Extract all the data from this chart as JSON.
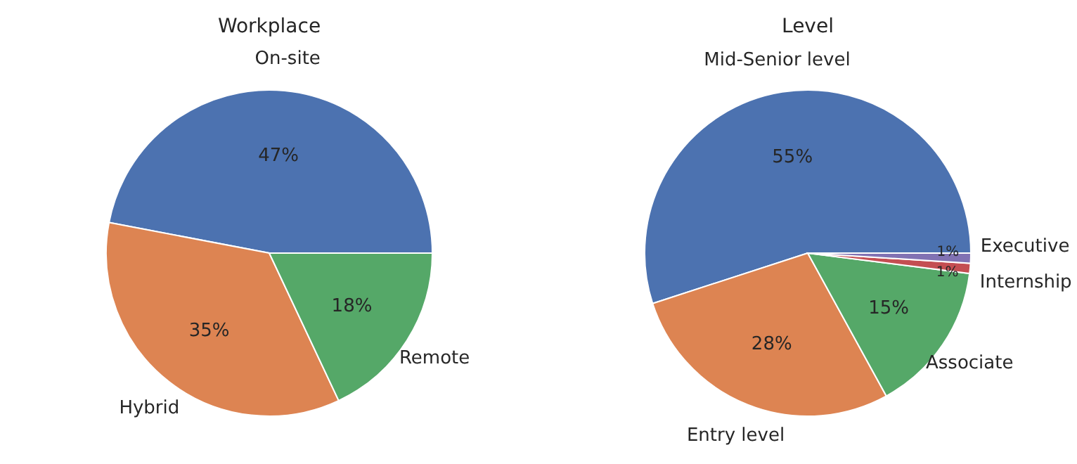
{
  "chart_data": [
    {
      "type": "pie",
      "title": "Workplace",
      "categories": [
        "On-site",
        "Hybrid",
        "Remote"
      ],
      "values": [
        47,
        35,
        18
      ],
      "colors": [
        "#4c72b0",
        "#dd8452",
        "#55a868"
      ],
      "value_labels": [
        "47%",
        "35%",
        "18%"
      ]
    },
    {
      "type": "pie",
      "title": "Level",
      "categories": [
        "Mid-Senior level",
        "Entry level",
        "Associate",
        "Internship",
        "Executive"
      ],
      "values": [
        55,
        28,
        15,
        1,
        1
      ],
      "colors": [
        "#4c72b0",
        "#dd8452",
        "#55a868",
        "#c44e52",
        "#8172b3"
      ],
      "value_labels": [
        "55%",
        "28%",
        "15%",
        "1%",
        "1%"
      ]
    }
  ]
}
